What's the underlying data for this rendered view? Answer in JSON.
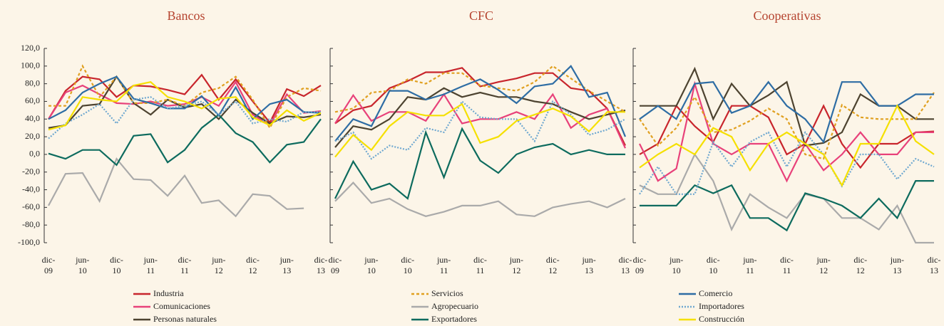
{
  "ylim": [
    -100,
    120
  ],
  "yticks": [
    {
      "value": -100,
      "label": "-100,0"
    },
    {
      "value": -80,
      "label": "-80,0"
    },
    {
      "value": -60,
      "label": "-60,0"
    },
    {
      "value": -40,
      "label": "-40,0"
    },
    {
      "value": -20,
      "label": "-20,0"
    },
    {
      "value": 0,
      "label": "0,0"
    },
    {
      "value": 20,
      "label": "20,0"
    },
    {
      "value": 40,
      "label": "40,0"
    },
    {
      "value": 60,
      "label": "60,0"
    },
    {
      "value": 80,
      "label": "80,0"
    },
    {
      "value": 100,
      "label": "100,0"
    },
    {
      "value": 120,
      "label": "120,0"
    }
  ],
  "series": [
    {
      "name": "Industria",
      "color": "#c8252c",
      "dash": "solid"
    },
    {
      "name": "Comunicaciones",
      "color": "#e8417a",
      "dash": "solid"
    },
    {
      "name": "Personas naturales",
      "color": "#4d4330",
      "dash": "solid"
    },
    {
      "name": "Servicios",
      "color": "#e0a020",
      "dash": "dashed"
    },
    {
      "name": "Agropecuario",
      "color": "#aaaaaa",
      "dash": "solid"
    },
    {
      "name": "Exportadores",
      "color": "#0d6b5e",
      "dash": "solid"
    },
    {
      "name": "Comercio",
      "color": "#2e6da4",
      "dash": "solid"
    },
    {
      "name": "Importadores",
      "color": "#6fa8d0",
      "dash": "dotted"
    },
    {
      "name": "Construcción",
      "color": "#f5e000",
      "dash": "solid"
    }
  ],
  "chart_data": [
    {
      "type": "line",
      "title": "Bancos",
      "categories": [
        "dic-09",
        null,
        "jun-10",
        null,
        "dic-10",
        null,
        "jun-11",
        null,
        "dic-11",
        null,
        "jun-12",
        null,
        "dic-12",
        null,
        "jun-13",
        null,
        "dic-13"
      ],
      "series": [
        {
          "values": [
            40,
            72,
            88,
            85,
            65,
            78,
            77,
            73,
            68,
            90,
            62,
            85,
            60,
            36,
            74,
            66,
            78
          ]
        },
        {
          "values": [
            40,
            70,
            78,
            68,
            58,
            57,
            60,
            55,
            57,
            65,
            55,
            82,
            45,
            33,
            68,
            47,
            49
          ]
        },
        {
          "values": [
            30,
            33,
            55,
            57,
            88,
            58,
            45,
            62,
            53,
            57,
            40,
            62,
            47,
            35,
            43,
            42,
            45
          ]
        },
        {
          "values": [
            55,
            55,
            100,
            65,
            88,
            58,
            58,
            62,
            55,
            70,
            75,
            88,
            62,
            30,
            65,
            75,
            72
          ]
        },
        {
          "values": [
            -58,
            -22,
            -21,
            -53,
            -5,
            -28,
            -29,
            -47,
            -24,
            -55,
            -52,
            -70,
            -45,
            -47,
            -62,
            -61,
            null
          ]
        },
        {
          "values": [
            1,
            -5,
            5,
            5,
            -12,
            21,
            23,
            -9,
            5,
            30,
            45,
            24,
            14,
            -9,
            11,
            14,
            40
          ]
        },
        {
          "values": [
            40,
            50,
            70,
            80,
            88,
            63,
            58,
            52,
            52,
            66,
            44,
            76,
            40,
            57,
            62,
            48,
            47
          ]
        },
        {
          "values": [
            18,
            35,
            45,
            57,
            35,
            62,
            65,
            52,
            55,
            60,
            45,
            60,
            35,
            40,
            37,
            48,
            48
          ]
        },
        {
          "values": [
            28,
            33,
            65,
            62,
            60,
            78,
            82,
            65,
            60,
            52,
            63,
            65,
            42,
            33,
            50,
            38,
            47
          ]
        }
      ]
    },
    {
      "type": "line",
      "title": "CFC",
      "categories": [
        "dic-09",
        null,
        "jun-10",
        null,
        "dic-10",
        null,
        "jun-11",
        null,
        "dic-11",
        null,
        "jun-12",
        null,
        "dic-12",
        null,
        "jun-13",
        null,
        "dic-13"
      ],
      "series": [
        {
          "values": [
            35,
            50,
            55,
            75,
            83,
            93,
            93,
            98,
            77,
            82,
            86,
            92,
            92,
            75,
            72,
            52,
            10
          ]
        },
        {
          "values": [
            35,
            67,
            38,
            48,
            48,
            38,
            68,
            35,
            40,
            40,
            48,
            40,
            68,
            30,
            45,
            52,
            7
          ]
        },
        {
          "values": [
            8,
            32,
            28,
            40,
            65,
            62,
            75,
            65,
            70,
            65,
            65,
            60,
            57,
            48,
            40,
            45,
            50
          ]
        },
        {
          "values": [
            48,
            52,
            70,
            72,
            85,
            80,
            92,
            92,
            78,
            75,
            72,
            82,
            100,
            86,
            72,
            60,
            48
          ]
        },
        {
          "values": [
            -53,
            -32,
            -55,
            -50,
            -62,
            -70,
            -65,
            -58,
            -58,
            -53,
            -68,
            -70,
            -60,
            -56,
            -53,
            -60,
            -50
          ]
        },
        {
          "values": [
            -50,
            -8,
            -40,
            -33,
            -50,
            25,
            -26,
            29,
            -7,
            -21,
            0,
            8,
            12,
            0,
            5,
            0,
            0
          ]
        },
        {
          "values": [
            15,
            40,
            32,
            72,
            72,
            62,
            68,
            77,
            85,
            73,
            58,
            77,
            80,
            100,
            65,
            70,
            20
          ]
        },
        {
          "values": [
            15,
            25,
            -5,
            10,
            5,
            30,
            25,
            60,
            42,
            40,
            40,
            15,
            60,
            45,
            22,
            28,
            40
          ]
        },
        {
          "values": [
            -3,
            22,
            5,
            32,
            48,
            44,
            44,
            57,
            13,
            20,
            38,
            45,
            52,
            43,
            26,
            48,
            48
          ]
        }
      ]
    },
    {
      "type": "line",
      "title": "Cooperativas",
      "categories": [
        "dic-09",
        null,
        "jun-10",
        null,
        "dic-10",
        null,
        "jun-11",
        null,
        "dic-11",
        null,
        "jun-12",
        null,
        "dic-12",
        null,
        "jun-13",
        null,
        "dic-13"
      ],
      "series": [
        {
          "values": [
            0,
            12,
            55,
            32,
            14,
            55,
            55,
            42,
            0,
            12,
            55,
            12,
            -15,
            12,
            12,
            25,
            26
          ]
        },
        {
          "values": [
            12,
            -30,
            -16,
            80,
            12,
            0,
            12,
            12,
            -30,
            12,
            -18,
            0,
            25,
            0,
            0,
            25,
            25
          ]
        },
        {
          "values": [
            55,
            55,
            55,
            97,
            40,
            80,
            55,
            67,
            82,
            10,
            13,
            25,
            68,
            55,
            55,
            40,
            40
          ]
        },
        {
          "values": [
            40,
            10,
            30,
            65,
            25,
            28,
            38,
            52,
            40,
            0,
            -5,
            56,
            42,
            40,
            40,
            40,
            70
          ]
        },
        {
          "values": [
            -35,
            -45,
            -45,
            0,
            -30,
            -85,
            -45,
            -60,
            -72,
            -45,
            -50,
            -72,
            -72,
            -85,
            -58,
            -100,
            -100
          ]
        },
        {
          "values": [
            -58,
            -58,
            -58,
            -35,
            -44,
            -35,
            -72,
            -72,
            -86,
            -44,
            -50,
            -58,
            -72,
            -50,
            -72,
            -30,
            -30
          ]
        },
        {
          "values": [
            40,
            55,
            40,
            80,
            82,
            47,
            55,
            82,
            55,
            40,
            14,
            82,
            82,
            55,
            55,
            68,
            68
          ]
        },
        {
          "values": [
            -45,
            -14,
            -45,
            -45,
            14,
            -14,
            14,
            25,
            -14,
            25,
            0,
            -36,
            0,
            0,
            -28,
            -5,
            -14
          ]
        },
        {
          "values": [
            -15,
            0,
            12,
            0,
            30,
            20,
            -18,
            12,
            25,
            12,
            0,
            -35,
            12,
            12,
            55,
            15,
            0
          ]
        }
      ]
    }
  ]
}
